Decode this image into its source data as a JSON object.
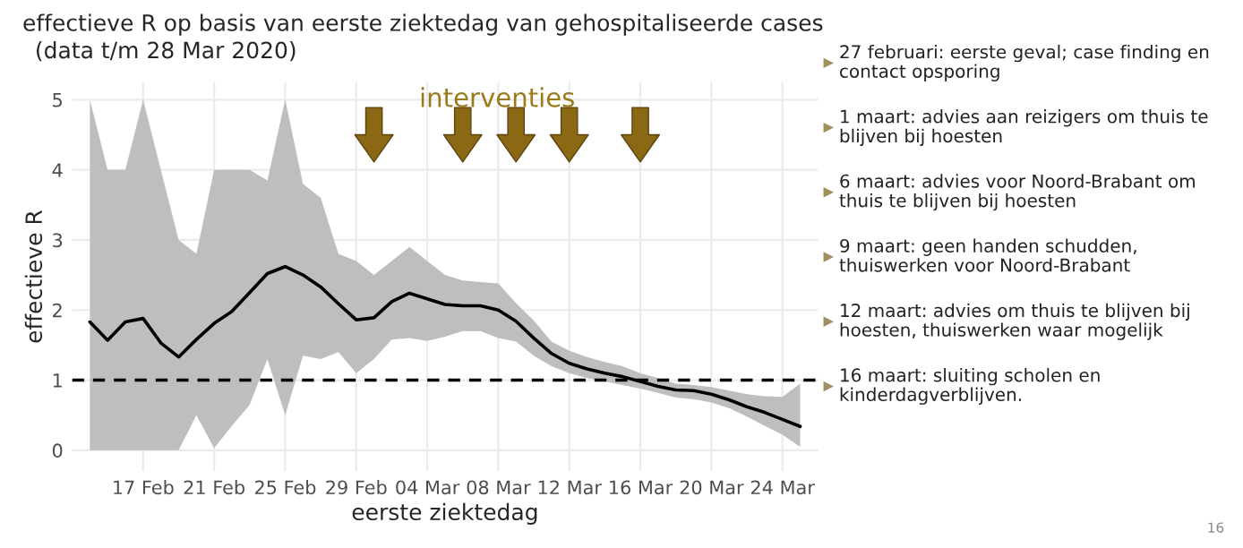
{
  "chart_data": {
    "type": "line",
    "title": "effectieve R op basis van eerste ziektedag van gehospitaliseerde cases",
    "subtitle": "(data t/m 28 Mar 2020)",
    "xlabel": "eerste ziektedag",
    "ylabel": "effectieve R",
    "x": [
      "2020-02-14",
      "2020-02-15",
      "2020-02-16",
      "2020-02-17",
      "2020-02-18",
      "2020-02-19",
      "2020-02-20",
      "2020-02-21",
      "2020-02-22",
      "2020-02-23",
      "2020-02-24",
      "2020-02-25",
      "2020-02-26",
      "2020-02-27",
      "2020-02-28",
      "2020-02-29",
      "2020-03-01",
      "2020-03-02",
      "2020-03-03",
      "2020-03-04",
      "2020-03-05",
      "2020-03-06",
      "2020-03-07",
      "2020-03-08",
      "2020-03-09",
      "2020-03-10",
      "2020-03-11",
      "2020-03-12",
      "2020-03-13",
      "2020-03-14",
      "2020-03-15",
      "2020-03-16",
      "2020-03-17",
      "2020-03-18",
      "2020-03-19",
      "2020-03-20",
      "2020-03-21",
      "2020-03-22",
      "2020-03-23",
      "2020-03-24",
      "2020-03-25"
    ],
    "series": [
      {
        "color": "#000000",
        "values": [
          1.83,
          1.57,
          1.83,
          1.88,
          1.53,
          1.33,
          1.58,
          1.81,
          1.98,
          2.25,
          2.52,
          2.62,
          2.5,
          2.33,
          2.09,
          1.86,
          1.89,
          2.12,
          2.24,
          2.16,
          2.08,
          2.06,
          2.06,
          2.0,
          1.84,
          1.6,
          1.38,
          1.24,
          1.16,
          1.1,
          1.05,
          0.98,
          0.91,
          0.86,
          0.85,
          0.8,
          0.72,
          0.62,
          0.54,
          0.44,
          0.34
        ],
        "lower": [
          0,
          0,
          0,
          0,
          0,
          0,
          0.5,
          0.03,
          0.35,
          0.65,
          1.3,
          0.5,
          1.35,
          1.3,
          1.4,
          1.1,
          1.3,
          1.58,
          1.6,
          1.56,
          1.62,
          1.7,
          1.7,
          1.6,
          1.55,
          1.35,
          1.2,
          1.1,
          1.03,
          0.98,
          0.93,
          0.88,
          0.82,
          0.75,
          0.73,
          0.68,
          0.6,
          0.48,
          0.35,
          0.22,
          0.05
        ],
        "upper": [
          5.0,
          4.0,
          4.0,
          5.0,
          4.0,
          3.0,
          2.8,
          4.0,
          4.0,
          4.0,
          3.85,
          5.0,
          3.8,
          3.6,
          2.8,
          2.7,
          2.5,
          2.7,
          2.9,
          2.7,
          2.5,
          2.42,
          2.4,
          2.38,
          2.1,
          1.85,
          1.55,
          1.42,
          1.33,
          1.26,
          1.2,
          1.1,
          1.03,
          0.95,
          0.93,
          0.9,
          0.85,
          0.8,
          0.77,
          0.76,
          0.95
        ]
      },
      {
        "type": "scatter",
        "color": "#8b6914",
        "x": [
          "2020-03-01",
          "2020-03-06",
          "2020-03-09",
          "2020-03-12",
          "2020-03-16"
        ],
        "values": [
          4.5,
          4.5,
          4.5,
          4.5,
          4.5
        ]
      }
    ],
    "xlim": [
      "2020-02-13",
      "2020-03-26"
    ],
    "xticks": [
      {
        "value": "2020-02-17",
        "label": "17 Feb"
      },
      {
        "value": "2020-02-21",
        "label": "21 Feb"
      },
      {
        "value": "2020-02-25",
        "label": "25 Feb"
      },
      {
        "value": "2020-02-29",
        "label": "29 Feb"
      },
      {
        "value": "2020-03-04",
        "label": "04 Mar"
      },
      {
        "value": "2020-03-08",
        "label": "08 Mar"
      },
      {
        "value": "2020-03-12",
        "label": "12 Mar"
      },
      {
        "value": "2020-03-16",
        "label": "16 Mar"
      },
      {
        "value": "2020-03-20",
        "label": "20 Mar"
      },
      {
        "value": "2020-03-24",
        "label": "24 Mar"
      }
    ],
    "ylim": [
      -0.3,
      5.25
    ],
    "yticks": [
      0,
      1,
      2,
      3,
      4,
      5
    ],
    "grid": true,
    "ref_lines": [
      {
        "axis": "y",
        "value": 1,
        "label": null,
        "color": "#000000",
        "line_style": "dashed"
      }
    ],
    "annotations": [
      "interventies",
      "27 februari: eerste geval; case finding en\ncontact opsporing",
      "1 maart: advies aan reizigers om thuis te\nblijven bij hoesten",
      "6 maart: advies voor Noord-Brabant om\nthuis te blijven bij hoesten",
      "9 maart: geen handen schudden,\nthuiswerken voor Noord-Brabant",
      "12 maart: advies om thuis te blijven bij\nhoesten, thuiswerken waar mogelijk",
      "16 maart: sluiting scholen en\nkinderdagverblijven.",
      "16"
    ]
  }
}
